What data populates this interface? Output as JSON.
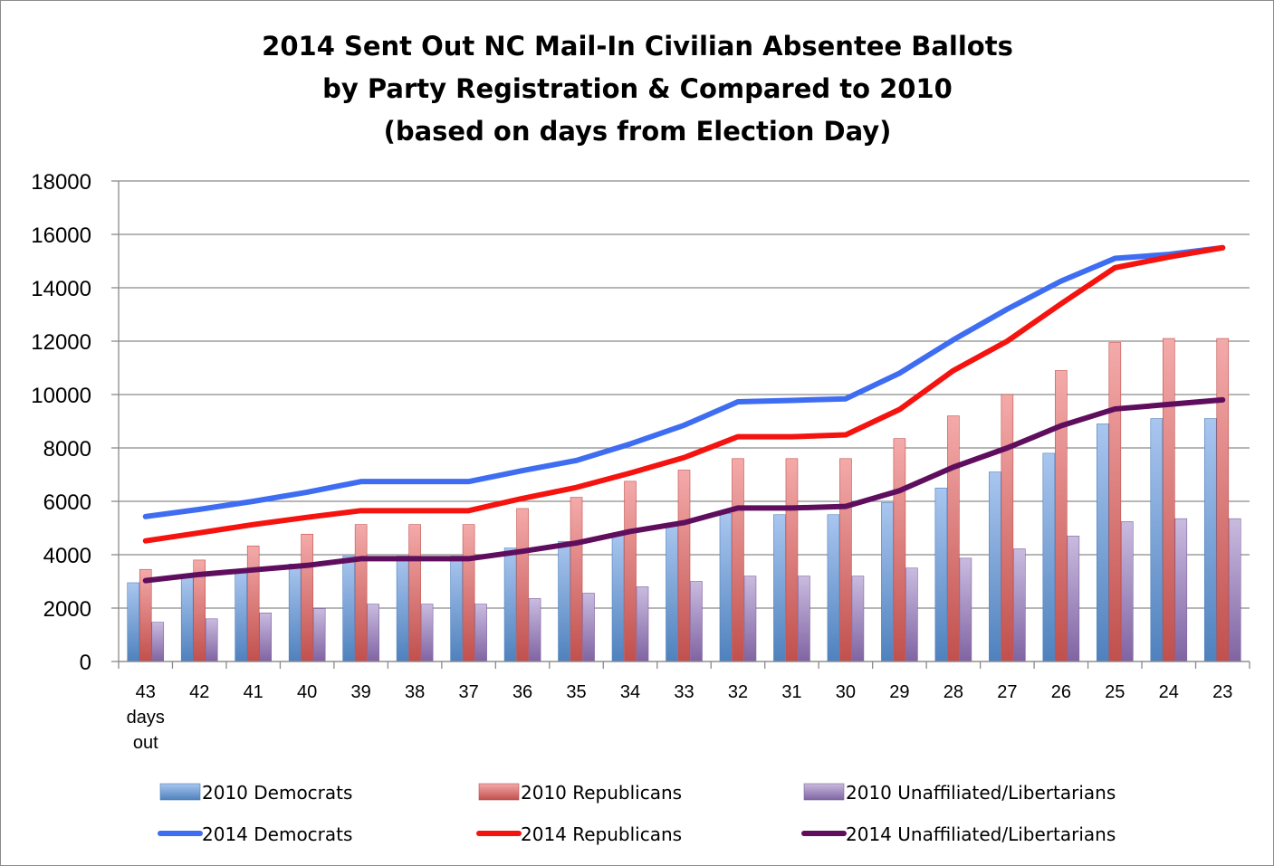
{
  "chart_data": {
    "type": "bar",
    "title_lines": [
      "2014 Sent Out NC Mail-In Civilian Absentee Ballots",
      "by Party Registration & Compared to 2010",
      "(based on days from Election Day)"
    ],
    "categories": [
      "43",
      "42",
      "41",
      "40",
      "39",
      "38",
      "37",
      "36",
      "35",
      "34",
      "33",
      "32",
      "31",
      "30",
      "29",
      "28",
      "27",
      "26",
      "25",
      "24",
      "23"
    ],
    "category_labels": [
      [
        "43",
        "days",
        "out"
      ],
      [
        "42"
      ],
      [
        "41"
      ],
      [
        "40"
      ],
      [
        "39"
      ],
      [
        "38"
      ],
      [
        "37"
      ],
      [
        "36"
      ],
      [
        "35"
      ],
      [
        "34"
      ],
      [
        "33"
      ],
      [
        "32"
      ],
      [
        "31"
      ],
      [
        "30"
      ],
      [
        "29"
      ],
      [
        "28"
      ],
      [
        "27"
      ],
      [
        "26"
      ],
      [
        "25"
      ],
      [
        "24"
      ],
      [
        "23"
      ]
    ],
    "ylim": [
      0,
      18000
    ],
    "yticks": [
      "0",
      "2000",
      "4000",
      "6000",
      "8000",
      "10000",
      "12000",
      "14000",
      "16000",
      "18000"
    ],
    "grid": true,
    "legend_position": "bottom",
    "bar_series": [
      {
        "name": "2010 Democrats",
        "color": "#4f81bd",
        "light": "#a9c6ef",
        "values": [
          2950,
          3150,
          3400,
          3650,
          3950,
          3950,
          3950,
          4250,
          4500,
          4800,
          5150,
          5550,
          5500,
          5500,
          5950,
          6500,
          7100,
          7800,
          8900,
          9100,
          9100
        ]
      },
      {
        "name": "2010 Republicans",
        "color": "#c0504d",
        "light": "#f4aaaa",
        "values": [
          3450,
          3800,
          4330,
          4770,
          5130,
          5130,
          5130,
          5730,
          6150,
          6750,
          7170,
          7600,
          7600,
          7600,
          8350,
          9200,
          10000,
          10900,
          11950,
          12100,
          12100
        ]
      },
      {
        "name": "2010 Unaffiliated/Libertarians",
        "color": "#8064a2",
        "light": "#c9bbdf",
        "values": [
          1470,
          1600,
          1820,
          1980,
          2150,
          2150,
          2150,
          2360,
          2560,
          2800,
          3000,
          3200,
          3200,
          3200,
          3500,
          3870,
          4220,
          4700,
          5240,
          5350,
          5350
        ]
      }
    ],
    "line_series": [
      {
        "name": "2014 Democrats",
        "color": "#3e6df2",
        "values": [
          5430,
          5700,
          6000,
          6340,
          6740,
          6740,
          6740,
          7150,
          7530,
          8150,
          8850,
          9730,
          9780,
          9840,
          10800,
          12050,
          13200,
          14250,
          15100,
          15250,
          15500
        ]
      },
      {
        "name": "2014 Republicans",
        "color": "#f5130f",
        "values": [
          4520,
          4820,
          5130,
          5400,
          5650,
          5650,
          5650,
          6110,
          6520,
          7060,
          7640,
          8420,
          8420,
          8490,
          9440,
          10900,
          12000,
          13400,
          14750,
          15150,
          15500
        ]
      },
      {
        "name": "2014 Unaffiliated/Libertarians",
        "color": "#5f0e5e",
        "values": [
          3030,
          3260,
          3430,
          3600,
          3850,
          3850,
          3850,
          4130,
          4440,
          4870,
          5200,
          5750,
          5750,
          5810,
          6400,
          7280,
          8000,
          8830,
          9460,
          9630,
          9800
        ]
      }
    ]
  }
}
